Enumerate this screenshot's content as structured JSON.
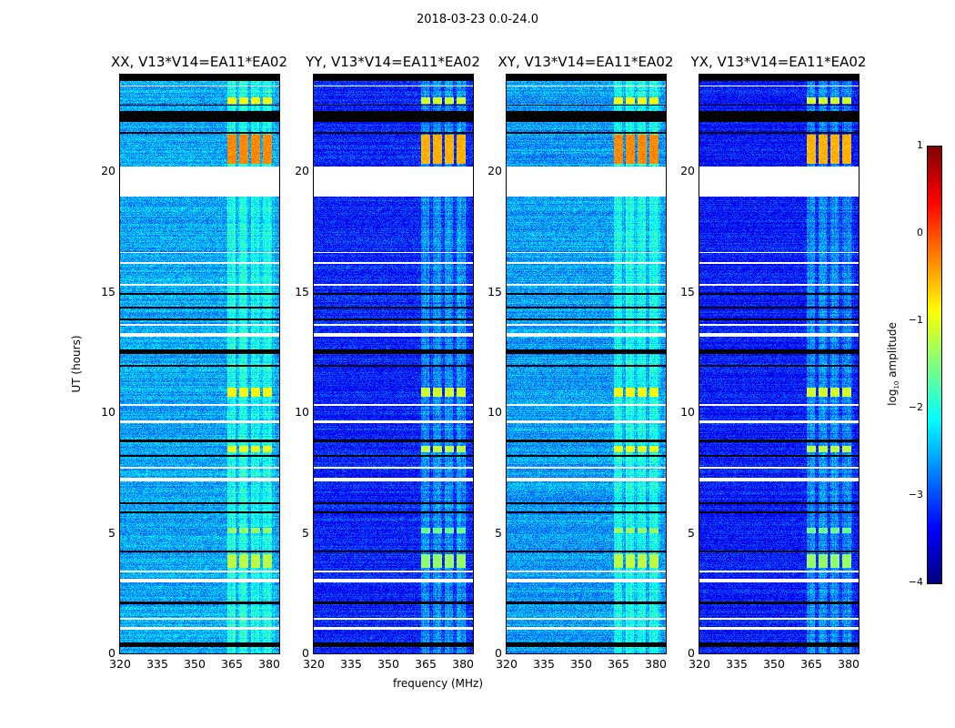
{
  "suptitle": "2018-03-23 0.0-24.0",
  "ylabel": "UT (hours)",
  "xlabel": "frequency (MHz)",
  "colorbar": {
    "label": "log10 amplitude",
    "label_main": "log",
    "label_sub": "10",
    "label_rest": " amplitude",
    "ticks": [
      "1",
      "0",
      "−1",
      "−2",
      "−3",
      "−4"
    ],
    "tick_values": [
      1,
      0,
      -1,
      -2,
      -3,
      -4
    ],
    "range": [
      -4,
      1
    ],
    "colormap": "jet"
  },
  "chart_data": {
    "type": "heatmap",
    "title": "2018-03-23 0.0-24.0",
    "xlabel": "frequency (MHz)",
    "ylabel": "UT (hours)",
    "xlim": [
      320,
      384
    ],
    "ylim": [
      0,
      24
    ],
    "xticks": [
      "320",
      "335",
      "350",
      "365",
      "380"
    ],
    "xtick_values": [
      320,
      335,
      350,
      365,
      380
    ],
    "yticks": [
      "0",
      "5",
      "10",
      "15",
      "20"
    ],
    "ytick_values": [
      0,
      5,
      10,
      15,
      20
    ],
    "panels": [
      {
        "title": "XX, V13*V14=EA11*EA02",
        "base_level": -2.55
      },
      {
        "title": "YY, V13*V14=EA11*EA02",
        "base_level": -3.2
      },
      {
        "title": "XY, V13*V14=EA11*EA02",
        "base_level": -2.6
      },
      {
        "title": "YX, V13*V14=EA11*EA02",
        "base_level": -3.25
      }
    ],
    "flagged_ranges_hours": [
      [
        18.95,
        20.2
      ],
      [
        1.0,
        1.08
      ],
      [
        1.4,
        1.47
      ],
      [
        2.95,
        3.1
      ],
      [
        3.35,
        3.42
      ],
      [
        7.15,
        7.3
      ],
      [
        7.65,
        7.72
      ],
      [
        9.55,
        9.65
      ],
      [
        10.25,
        10.35
      ],
      [
        13.15,
        13.28
      ],
      [
        13.6,
        13.65
      ],
      [
        15.25,
        15.32
      ],
      [
        16.15,
        16.22
      ],
      [
        16.6,
        16.65
      ],
      [
        23.5,
        23.55
      ]
    ],
    "zero_ranges_hours": [
      [
        0.28,
        0.45
      ],
      [
        2.05,
        2.15
      ],
      [
        4.2,
        4.27
      ],
      [
        5.8,
        5.87
      ],
      [
        6.2,
        6.26
      ],
      [
        8.15,
        8.22
      ],
      [
        8.75,
        8.85
      ],
      [
        11.9,
        11.97
      ],
      [
        12.4,
        12.6
      ],
      [
        13.8,
        13.87
      ],
      [
        14.3,
        14.37
      ],
      [
        14.85,
        14.95
      ],
      [
        21.55,
        21.62
      ],
      [
        22.05,
        22.5
      ],
      [
        22.7,
        22.77
      ],
      [
        23.75,
        24.0
      ]
    ],
    "rfi_band_mhz": [
      363,
      382
    ],
    "rfi_blocks": [
      {
        "hours": [
          20.3,
          21.5
        ],
        "level": -0.3
      },
      {
        "hours": [
          22.8,
          23.05
        ],
        "level": -0.9
      },
      {
        "hours": [
          10.65,
          11.0
        ],
        "level": -0.9
      },
      {
        "hours": [
          8.35,
          8.6
        ],
        "level": -1.0
      },
      {
        "hours": [
          3.55,
          4.1
        ],
        "level": -1.2
      },
      {
        "hours": [
          5.0,
          5.2
        ],
        "level": -1.4
      }
    ]
  }
}
